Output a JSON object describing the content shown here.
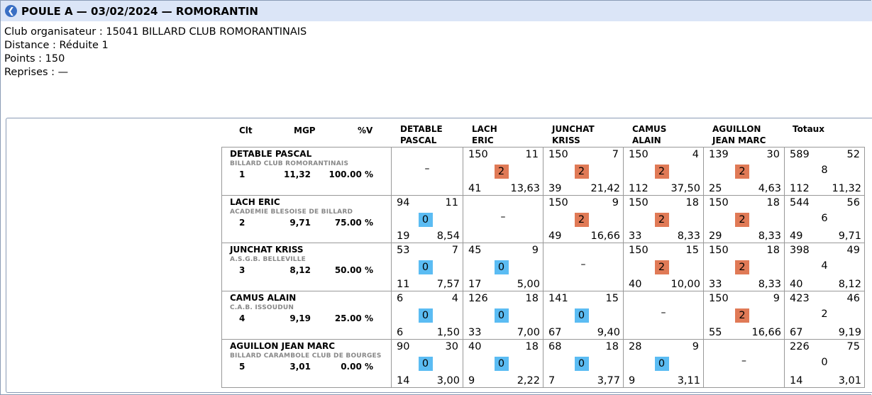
{
  "title": "POULE A — 03/02/2024 — ROMORANTIN",
  "info": {
    "club": "Club organisateur : 15041 BILLARD CLUB ROMORANTINAIS",
    "distance": "Distance : Réduite 1",
    "points": "Points : 150",
    "reprises": "Reprises : —"
  },
  "headers": {
    "clt": "Clt",
    "mgp": "MGP",
    "pv": "%V",
    "totaux": "Totaux",
    "cols": [
      [
        "DETABLE",
        "PASCAL"
      ],
      [
        "LACH",
        "ERIC"
      ],
      [
        "JUNCHAT",
        "KRISS"
      ],
      [
        "CAMUS",
        "ALAIN"
      ],
      [
        "AGUILLON",
        "JEAN MARC"
      ]
    ]
  },
  "dash": "–",
  "colors": {
    "win": "#e07a56",
    "loss": "#5bbcf3",
    "titlebar": "#dbe5f7"
  },
  "rows": [
    {
      "name": "DETABLE PASCAL",
      "club": "BILLARD CLUB ROMORANTINAIS",
      "rank": "1",
      "mgp": "11,32",
      "pct": "100.00 %",
      "cells": [
        null,
        {
          "pts": "150",
          "rep": "11",
          "res": "2",
          "win": true,
          "best": "41",
          "moy": "13,63"
        },
        {
          "pts": "150",
          "rep": "7",
          "res": "2",
          "win": true,
          "best": "39",
          "moy": "21,42"
        },
        {
          "pts": "150",
          "rep": "4",
          "res": "2",
          "win": true,
          "best": "112",
          "moy": "37,50"
        },
        {
          "pts": "139",
          "rep": "30",
          "res": "2",
          "win": true,
          "best": "25",
          "moy": "4,63"
        }
      ],
      "total": {
        "pts": "589",
        "rep": "52",
        "res": "8",
        "best": "112",
        "moy": "11,32"
      }
    },
    {
      "name": "LACH ERIC",
      "club": "ACADEMIE BLESOISE DE BILLARD",
      "rank": "2",
      "mgp": "9,71",
      "pct": "75.00 %",
      "cells": [
        {
          "pts": "94",
          "rep": "11",
          "res": "0",
          "win": false,
          "best": "19",
          "moy": "8,54"
        },
        null,
        {
          "pts": "150",
          "rep": "9",
          "res": "2",
          "win": true,
          "best": "49",
          "moy": "16,66"
        },
        {
          "pts": "150",
          "rep": "18",
          "res": "2",
          "win": true,
          "best": "33",
          "moy": "8,33"
        },
        {
          "pts": "150",
          "rep": "18",
          "res": "2",
          "win": true,
          "best": "29",
          "moy": "8,33"
        }
      ],
      "total": {
        "pts": "544",
        "rep": "56",
        "res": "6",
        "best": "49",
        "moy": "9,71"
      }
    },
    {
      "name": "JUNCHAT KRISS",
      "club": "A.S.G.B. BELLEVILLE",
      "rank": "3",
      "mgp": "8,12",
      "pct": "50.00 %",
      "cells": [
        {
          "pts": "53",
          "rep": "7",
          "res": "0",
          "win": false,
          "best": "11",
          "moy": "7,57"
        },
        {
          "pts": "45",
          "rep": "9",
          "res": "0",
          "win": false,
          "best": "17",
          "moy": "5,00"
        },
        null,
        {
          "pts": "150",
          "rep": "15",
          "res": "2",
          "win": true,
          "best": "40",
          "moy": "10,00"
        },
        {
          "pts": "150",
          "rep": "18",
          "res": "2",
          "win": true,
          "best": "33",
          "moy": "8,33"
        }
      ],
      "total": {
        "pts": "398",
        "rep": "49",
        "res": "4",
        "best": "40",
        "moy": "8,12"
      }
    },
    {
      "name": "CAMUS ALAIN",
      "club": "C.A.B. ISSOUDUN",
      "rank": "4",
      "mgp": "9,19",
      "pct": "25.00 %",
      "cells": [
        {
          "pts": "6",
          "rep": "4",
          "res": "0",
          "win": false,
          "best": "6",
          "moy": "1,50"
        },
        {
          "pts": "126",
          "rep": "18",
          "res": "0",
          "win": false,
          "best": "33",
          "moy": "7,00"
        },
        {
          "pts": "141",
          "rep": "15",
          "res": "0",
          "win": false,
          "best": "67",
          "moy": "9,40"
        },
        null,
        {
          "pts": "150",
          "rep": "9",
          "res": "2",
          "win": true,
          "best": "55",
          "moy": "16,66"
        }
      ],
      "total": {
        "pts": "423",
        "rep": "46",
        "res": "2",
        "best": "67",
        "moy": "9,19"
      }
    },
    {
      "name": "AGUILLON JEAN MARC",
      "club": "BILLARD CARAMBOLE CLUB DE BOURGES",
      "rank": "5",
      "mgp": "3,01",
      "pct": "0.00 %",
      "cells": [
        {
          "pts": "90",
          "rep": "30",
          "res": "0",
          "win": false,
          "best": "14",
          "moy": "3,00"
        },
        {
          "pts": "40",
          "rep": "18",
          "res": "0",
          "win": false,
          "best": "9",
          "moy": "2,22"
        },
        {
          "pts": "68",
          "rep": "18",
          "res": "0",
          "win": false,
          "best": "7",
          "moy": "3,77"
        },
        {
          "pts": "28",
          "rep": "9",
          "res": "0",
          "win": false,
          "best": "9",
          "moy": "3,11"
        },
        null
      ],
      "total": {
        "pts": "226",
        "rep": "75",
        "res": "0",
        "best": "14",
        "moy": "3,01"
      }
    }
  ]
}
